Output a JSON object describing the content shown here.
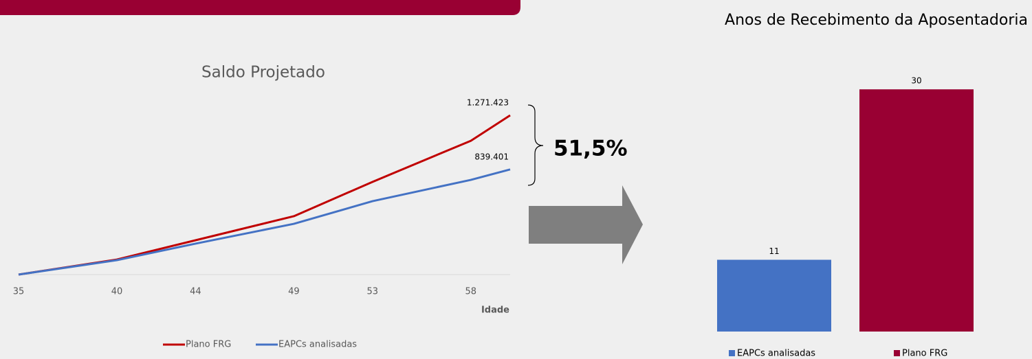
{
  "chart_data": [
    {
      "type": "line",
      "title": "Saldo Projetado",
      "x_label": "Idade",
      "x": [
        35,
        40,
        44,
        49,
        53,
        58,
        60
      ],
      "xlim": [
        35,
        60
      ],
      "xticks": [
        35,
        40,
        44,
        49,
        53,
        58
      ],
      "ylim": [
        0,
        1400000
      ],
      "legend": "bottom",
      "annotation": "51,5%",
      "series": [
        {
          "name": "Plano FRG",
          "color": "#c00000",
          "values": [
            0,
            120000,
            274000,
            466000,
            740000,
            1068000,
            1271423
          ],
          "value_labels": [
            null,
            null,
            null,
            null,
            null,
            null,
            "1.271.423"
          ]
        },
        {
          "name": "EAPCs analisadas",
          "color": "#4472c4",
          "values": [
            0,
            115000,
            247000,
            405000,
            586000,
            756000,
            839401
          ],
          "value_labels": [
            null,
            null,
            null,
            null,
            null,
            null,
            "839.401"
          ]
        }
      ]
    },
    {
      "type": "bar",
      "title": "Anos de Recebimento da Aposentadoria",
      "ylim": [
        3,
        32
      ],
      "legend": "bottom",
      "series": [
        {
          "name": "EAPCs analisadas",
          "color": "#4472c4",
          "values": [
            11
          ]
        },
        {
          "name": "Plano FRG",
          "color": "#990033",
          "values": [
            30
          ]
        }
      ]
    }
  ]
}
